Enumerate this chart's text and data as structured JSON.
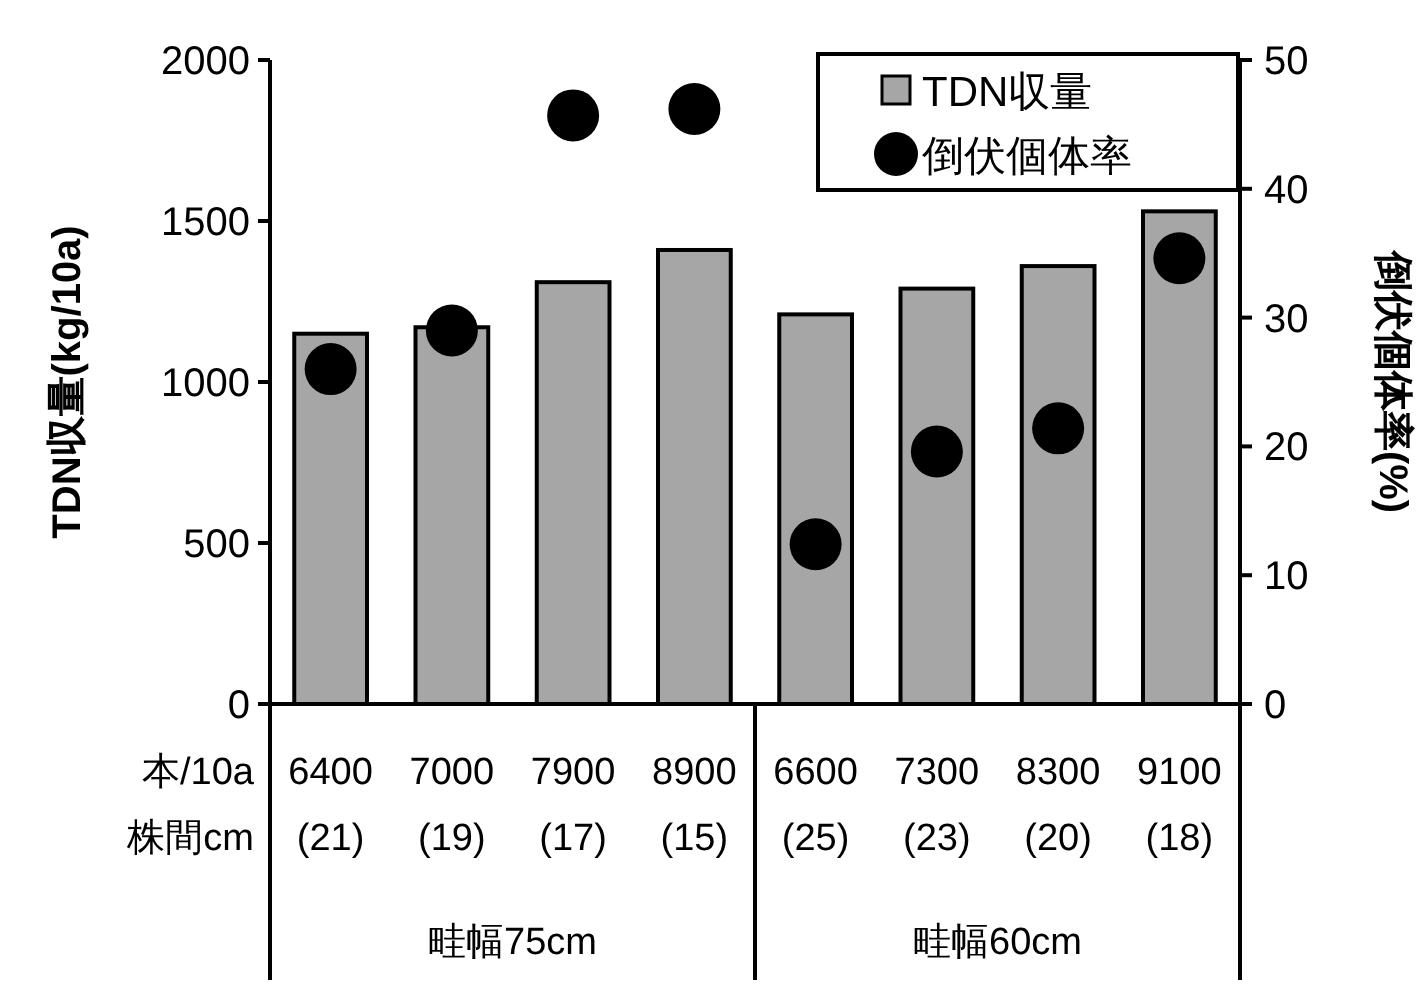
{
  "chart_data": {
    "type": "bar",
    "ylabel": "TDN収量(kg/10a)",
    "y2label": "倒伏個体率(%)",
    "categories": [
      "6400\n(21)",
      "7000\n(19)",
      "7900\n(17)",
      "8900\n(15)",
      "6600\n(25)",
      "7300\n(23)",
      "8300\n(20)",
      "9100\n(18)"
    ],
    "series": [
      {
        "name": "TDN収量",
        "color": "#a6a6a6",
        "values": [
          1150,
          1170,
          1310,
          1410,
          1210,
          1290,
          1360,
          1530
        ]
      },
      {
        "name": "倒伏個体率",
        "type": "scatter",
        "color": "#000000",
        "axis": "y2",
        "marker": "circle",
        "values": [
          26.0,
          29.0,
          45.7,
          46.2,
          12.4,
          19.6,
          21.4,
          34.6
        ]
      }
    ],
    "ylim": [
      0,
      2000
    ],
    "yticks": [
      0,
      500,
      1000,
      1500,
      2000
    ],
    "y2lim": [
      0,
      50
    ],
    "y2ticks": [
      0,
      10,
      20,
      30,
      40,
      50
    ],
    "legend": "top right",
    "grid": false,
    "annotations": [
      "本/10a",
      "株間cm",
      "畦幅75cm",
      "畦幅60cm"
    ]
  }
}
